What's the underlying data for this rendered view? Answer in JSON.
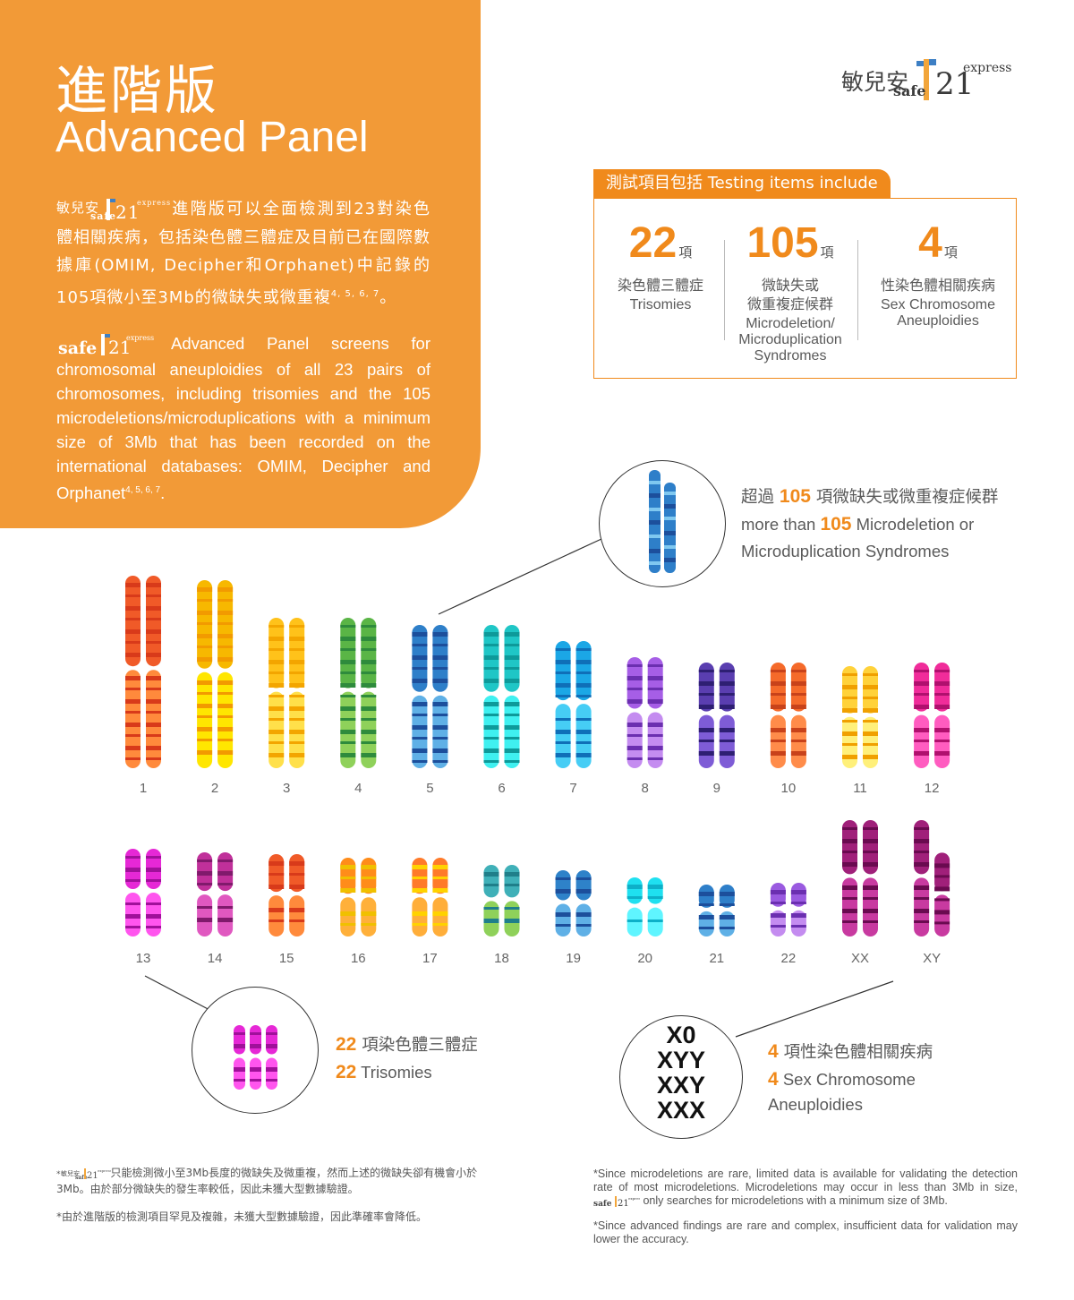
{
  "header": {
    "title_zh": "進階版",
    "title_en": "Advanced Panel"
  },
  "brand": {
    "name_zh": "敏兒安",
    "safe": "safe",
    "num": "21",
    "express": "express",
    "colors": {
      "orange": "#f08a1c",
      "panel": "#f29a37",
      "blue": "#3d7fc4"
    }
  },
  "intro": {
    "zh": "進階版可以全面檢測到23對染色體相關疾病，包括染色體三體症及目前已在國際數據庫(OMIM, Decipher和Orphanet)中記錄的105項微小至3Mb的微缺失或微重複",
    "zh_refs": "4, 5, 6, 7",
    "zh_end": "。",
    "en": "Advanced Panel screens for chromosomal aneuploidies of all 23 pairs of chromosomes, including trisomies and the 105 microdeletions/microduplications with a minimum size of 3Mb that has been recorded on the international databases: OMIM, Decipher and Orphanet",
    "en_refs": "4, 5, 6, 7",
    "en_end": "."
  },
  "testing_box": {
    "tab": "測試項目包括 Testing items include",
    "unit": "項",
    "items": [
      {
        "count": "22",
        "zh": "染色體三體症",
        "en": "Trisomies"
      },
      {
        "count": "105",
        "zh": "微缺失或\n微重複症候群",
        "en": "Microdeletion/\nMicroduplication\nSyndromes"
      },
      {
        "count": "4",
        "zh": "性染色體相關疾病",
        "en": "Sex Chromosome\nAneuploidies"
      }
    ]
  },
  "callouts": {
    "micro": {
      "pre_zh": "超過",
      "num": "105",
      "post_zh": "項微缺失或微重複症候群",
      "pre_en": "more than",
      "post_en": "Microdeletion or",
      "line3_en": "Microduplication Syndromes"
    },
    "trisomy": {
      "num": "22",
      "zh": "項染色體三體症",
      "en": "Trisomies"
    },
    "sex": {
      "num": "4",
      "zh": "項性染色體相關疾病",
      "en": "Sex Chromosome",
      "line3_en": "Aneuploidies",
      "list": [
        "X0",
        "XYY",
        "XXY",
        "XXX"
      ]
    }
  },
  "chromosomes": {
    "row1": [
      {
        "label": "1",
        "c1": "#f05a28",
        "c2": "#ff8a3c",
        "band": "#d83a1a",
        "h": 215
      },
      {
        "label": "2",
        "c1": "#f7b800",
        "c2": "#ffe600",
        "band": "#f29a00",
        "h": 210
      },
      {
        "label": "3",
        "c1": "#ffc21a",
        "c2": "#ffe04a",
        "band": "#f3a500",
        "h": 168
      },
      {
        "label": "4",
        "c1": "#5ab546",
        "c2": "#8fd15a",
        "band": "#2e8b3c",
        "h": 168
      },
      {
        "label": "5",
        "c1": "#2e7fc9",
        "c2": "#5fb0e6",
        "band": "#1c4f9c",
        "h": 160
      },
      {
        "label": "6",
        "c1": "#1fc6c6",
        "c2": "#3ff0f0",
        "band": "#0d9a9a",
        "h": 160
      },
      {
        "label": "7",
        "c1": "#1ba7e6",
        "c2": "#46cdf5",
        "band": "#0f6fb8",
        "h": 142
      },
      {
        "label": "8",
        "c1": "#a65ee6",
        "c2": "#c48cf0",
        "band": "#6b2fb0",
        "h": 124
      },
      {
        "label": "9",
        "c1": "#5a3eb0",
        "c2": "#7e5cd6",
        "band": "#2e1f73",
        "h": 118
      },
      {
        "label": "10",
        "c1": "#f56a2a",
        "c2": "#ff8c4a",
        "band": "#c8421a",
        "h": 118
      },
      {
        "label": "11",
        "c1": "#ffd23a",
        "c2": "#fff07a",
        "band": "#f0a000",
        "h": 114
      },
      {
        "label": "12",
        "c1": "#f02c9a",
        "c2": "#ff5cc0",
        "band": "#b0106e",
        "h": 118
      }
    ],
    "row2": [
      {
        "label": "13",
        "c1": "#e628d6",
        "c2": "#ff55ee",
        "band": "#a0109a",
        "h": 98
      },
      {
        "label": "14",
        "c1": "#c0309a",
        "c2": "#e058c0",
        "band": "#801a6c",
        "h": 94
      },
      {
        "label": "15",
        "c1": "#f05a28",
        "c2": "#ff8a3c",
        "band": "#d83a1a",
        "h": 92
      },
      {
        "label": "16",
        "c1": "#ff8c1a",
        "c2": "#ffb03a",
        "band": "#f0c000",
        "h": 88
      },
      {
        "label": "17",
        "c1": "#ff7a2a",
        "c2": "#ffae3a",
        "band": "#ffd200",
        "h": 88
      },
      {
        "label": "18",
        "c1": "#3fb0b8",
        "c2": "#8fd15a",
        "band": "#1f7f8a",
        "h": 80
      },
      {
        "label": "19",
        "c1": "#2e82c9",
        "c2": "#5fb0e6",
        "band": "#1c4f9c",
        "h": 74
      },
      {
        "label": "20",
        "c1": "#1fe0f0",
        "c2": "#5ff5ff",
        "band": "#0db0c8",
        "h": 66
      },
      {
        "label": "21",
        "c1": "#2e7fc9",
        "c2": "#5fb0e6",
        "band": "#1c4f9c",
        "h": 58
      },
      {
        "label": "22",
        "c1": "#9a5ae0",
        "c2": "#c48cf0",
        "band": "#6b2fb0",
        "h": 60
      },
      {
        "label": "XX",
        "c1": "#a0207a",
        "c2": "#c83aa0",
        "band": "#6a0a50",
        "h": 130
      },
      {
        "label": "XY",
        "c1": "#a0207a",
        "c2": "#c83aa0",
        "band": "#6a0a50",
        "h": 130
      }
    ]
  },
  "footnotes": {
    "zh1": "只能檢測微小至3Mb長度的微缺失及微重複，然而上述的微缺失卻有機會小於3Mb。由於部分微缺失的發生率較低，因此未獲大型數據驗證。",
    "zh2": "*由於進階版的檢測項目罕見及複雜，未獲大型數據驗證，因此準確率會降低。",
    "en1_a": "*Since microdeletions are rare, limited data is available for validating the detection rate of most microdeletions. Microdeletions may occur in less than 3Mb in size,",
    "en1_b": "only searches for microdeletions with a minimum size of 3Mb.",
    "en2": "*Since advanced findings are rare and complex, insufficient data for validation may lower the accuracy."
  }
}
